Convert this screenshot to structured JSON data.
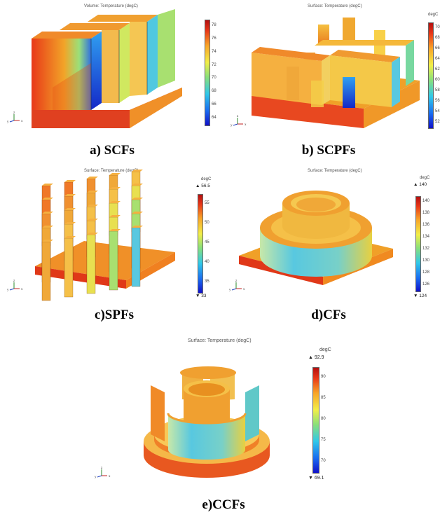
{
  "panels": [
    {
      "title": "Volume: Temperature (degC)",
      "unit": "",
      "ticks": [
        "78",
        "76",
        "74",
        "72",
        "70",
        "68",
        "66",
        "64"
      ],
      "max_label": "",
      "min_label": "",
      "caption": "a) SCFs"
    },
    {
      "title": "Surface: Temperature (degC)",
      "unit": "degC",
      "ticks": [
        "70",
        "68",
        "66",
        "64",
        "62",
        "60",
        "58",
        "56",
        "54",
        "52"
      ],
      "max_label": "",
      "min_label": "",
      "caption": "b) SCPFs"
    },
    {
      "title": "Surface: Temperature (degC)",
      "unit": "degC",
      "ticks": [
        "55",
        "50",
        "45",
        "40",
        "35"
      ],
      "max_label": "▲ 56.5",
      "min_label": "▼ 33",
      "caption": "c)SPFs"
    },
    {
      "title": "Surface: Temperature (degC)",
      "unit": "degC",
      "ticks": [
        "140",
        "138",
        "136",
        "134",
        "132",
        "130",
        "128",
        "126"
      ],
      "max_label": "▲ 140",
      "min_label": "▼ 124",
      "caption": "d)CFs"
    },
    {
      "title": "Surface: Temperature (degC)",
      "unit": "degC",
      "ticks": [
        "90",
        "85",
        "80",
        "75",
        "70"
      ],
      "max_label": "▲ 92.9",
      "min_label": "▼ 69.1",
      "caption": "e)CCFs"
    }
  ],
  "axis_triad": {
    "z": "z",
    "y": "y",
    "x": "x"
  },
  "colormap": [
    "#1010c8",
    "#1a6cf0",
    "#30c8e8",
    "#8ae07a",
    "#f2ee48",
    "#f8a428",
    "#e83818",
    "#b41010"
  ]
}
